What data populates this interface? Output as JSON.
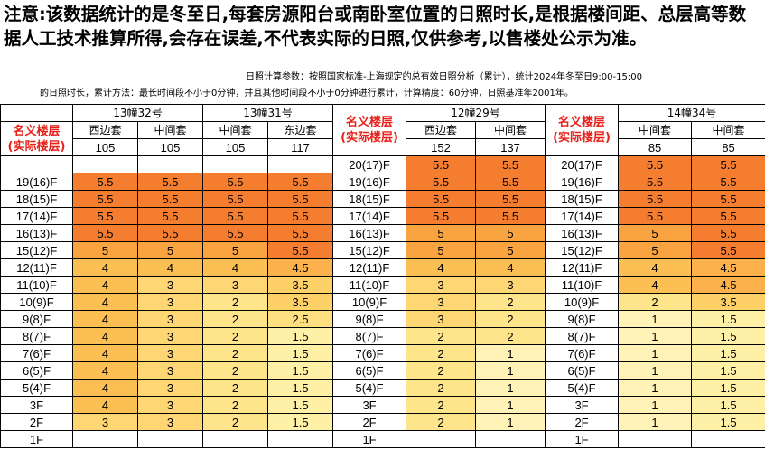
{
  "notice": "注意:该数据统计的是冬至日,每套房源阳台或南卧室位置的日照时长,是根据楼间距、总层高等数据人工技术推算所得,会存在误差,不代表实际的日照,仅供参考,以售楼处公示为准。",
  "params_line1": "日照计算参数：按照国家标准-上海规定的总有效日照分析（累计），统计2024年冬至日9:00-15:00",
  "params_line2": "的日照时长，累计方法：最长时间段不小于0分钟，并且其他时间段不小于0分钟进行累计，计算精度：60分钟，日照基准年2001年。",
  "floor_header": "名义楼层\n(实际楼层)",
  "colors": {
    "c55": "#f47d30",
    "c5": "#f9a440",
    "c45": "#fbb24c",
    "c4": "#fcbf54",
    "c35": "#fdd068",
    "c3": "#fed774",
    "c25": "#fee080",
    "c2": "#fee48a",
    "c15": "#fff0a8",
    "c1": "#fff3b8"
  },
  "group_a": {
    "buildings": [
      {
        "name": "13幢32号",
        "units": [
          "西边套",
          "中间套"
        ],
        "dists": [
          "105",
          "105"
        ]
      },
      {
        "name": "13幢31号",
        "units": [
          "中间套",
          "东边套"
        ],
        "dists": [
          "105",
          "117"
        ]
      }
    ],
    "rows": [
      {
        "floor": "19(16)F",
        "v": [
          "5.5",
          "5.5",
          "5.5",
          "5.5"
        ]
      },
      {
        "floor": "18(15)F",
        "v": [
          "5.5",
          "5.5",
          "5.5",
          "5.5"
        ]
      },
      {
        "floor": "17(14)F",
        "v": [
          "5.5",
          "5.5",
          "5.5",
          "5.5"
        ]
      },
      {
        "floor": "16(13)F",
        "v": [
          "5.5",
          "5.5",
          "5.5",
          "5.5"
        ]
      },
      {
        "floor": "15(12)F",
        "v": [
          "5",
          "5",
          "5",
          "5.5"
        ]
      },
      {
        "floor": "12(11)F",
        "v": [
          "4",
          "4",
          "4",
          "4.5"
        ]
      },
      {
        "floor": "11(10)F",
        "v": [
          "4",
          "3",
          "3",
          "3.5"
        ]
      },
      {
        "floor": "10(9)F",
        "v": [
          "4",
          "3",
          "2",
          "3.5"
        ]
      },
      {
        "floor": "9(8)F",
        "v": [
          "4",
          "3",
          "2",
          "2.5"
        ]
      },
      {
        "floor": "8(7)F",
        "v": [
          "4",
          "3",
          "2",
          "1.5"
        ]
      },
      {
        "floor": "7(6)F",
        "v": [
          "4",
          "3",
          "2",
          "1.5"
        ]
      },
      {
        "floor": "6(5)F",
        "v": [
          "4",
          "3",
          "2",
          "1.5"
        ]
      },
      {
        "floor": "5(4)F",
        "v": [
          "4",
          "3",
          "2",
          "1.5"
        ]
      },
      {
        "floor": "3F",
        "v": [
          "4",
          "3",
          "2",
          "1.5"
        ]
      },
      {
        "floor": "2F",
        "v": [
          "3",
          "3",
          "2",
          "1.5"
        ]
      },
      {
        "floor": "1F",
        "v": [
          "",
          "",
          "",
          ""
        ]
      }
    ]
  },
  "group_b": {
    "building": "12幢29号",
    "units": [
      "西边套",
      "中间套"
    ],
    "dists": [
      "152",
      "137"
    ],
    "rows": [
      {
        "floor": "20(17)F",
        "v": [
          "5.5",
          "5.5"
        ]
      },
      {
        "floor": "19(16)F",
        "v": [
          "5.5",
          "5.5"
        ]
      },
      {
        "floor": "18(15)F",
        "v": [
          "5.5",
          "5.5"
        ]
      },
      {
        "floor": "17(14)F",
        "v": [
          "5.5",
          "5.5"
        ]
      },
      {
        "floor": "16(13)F",
        "v": [
          "5",
          "5"
        ]
      },
      {
        "floor": "15(12)F",
        "v": [
          "5",
          "5"
        ]
      },
      {
        "floor": "12(11)F",
        "v": [
          "4",
          "4"
        ]
      },
      {
        "floor": "11(10)F",
        "v": [
          "3",
          "3"
        ]
      },
      {
        "floor": "10(9)F",
        "v": [
          "3",
          "2"
        ]
      },
      {
        "floor": "9(8)F",
        "v": [
          "3",
          "2"
        ]
      },
      {
        "floor": "8(7)F",
        "v": [
          "2",
          "2"
        ]
      },
      {
        "floor": "7(6)F",
        "v": [
          "2",
          "1"
        ]
      },
      {
        "floor": "6(5)F",
        "v": [
          "2",
          "1"
        ]
      },
      {
        "floor": "5(4)F",
        "v": [
          "2",
          "1"
        ]
      },
      {
        "floor": "3F",
        "v": [
          "2",
          "1"
        ]
      },
      {
        "floor": "2F",
        "v": [
          "2",
          "1"
        ]
      },
      {
        "floor": "1F",
        "v": [
          "",
          ""
        ]
      }
    ]
  },
  "group_c": {
    "building": "14幢34号",
    "units": [
      "中间套",
      "中间套"
    ],
    "dists": [
      "85",
      "85"
    ],
    "rows": [
      {
        "floor": "20(17)F",
        "v": [
          "5.5",
          "5.5"
        ]
      },
      {
        "floor": "19(16)F",
        "v": [
          "5.5",
          "5.5"
        ]
      },
      {
        "floor": "18(15)F",
        "v": [
          "5.5",
          "5.5"
        ]
      },
      {
        "floor": "17(14)F",
        "v": [
          "5.5",
          "5.5"
        ]
      },
      {
        "floor": "16(13)F",
        "v": [
          "5",
          "5.5"
        ]
      },
      {
        "floor": "15(12)F",
        "v": [
          "5",
          "5.5"
        ]
      },
      {
        "floor": "12(11)F",
        "v": [
          "4",
          "4.5"
        ]
      },
      {
        "floor": "11(10)F",
        "v": [
          "4",
          "4.5"
        ]
      },
      {
        "floor": "10(9)F",
        "v": [
          "2",
          "3.5"
        ]
      },
      {
        "floor": "9(8)F",
        "v": [
          "1",
          "1.5"
        ]
      },
      {
        "floor": "8(7)F",
        "v": [
          "1",
          "1.5"
        ]
      },
      {
        "floor": "7(6)F",
        "v": [
          "1",
          "1.5"
        ]
      },
      {
        "floor": "6(5)F",
        "v": [
          "1",
          "1.5"
        ]
      },
      {
        "floor": "5(4)F",
        "v": [
          "1",
          "1.5"
        ]
      },
      {
        "floor": "3F",
        "v": [
          "1",
          "1.5"
        ]
      },
      {
        "floor": "2F",
        "v": [
          "1",
          "1.5"
        ]
      },
      {
        "floor": "1F",
        "v": [
          "",
          ""
        ]
      }
    ]
  }
}
